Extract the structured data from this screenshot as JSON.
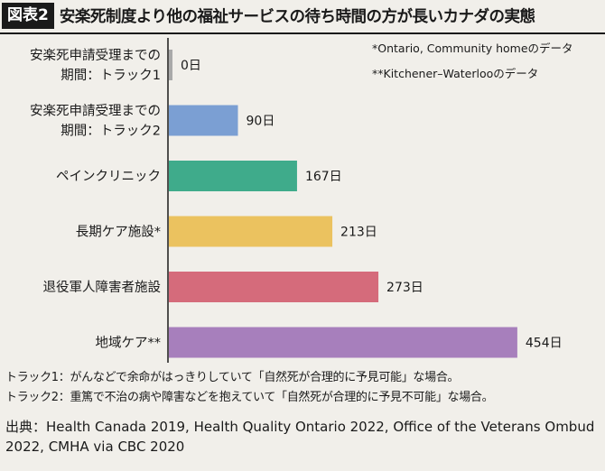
{
  "header": {
    "tag": "図表2",
    "title": "安楽死制度より他の福祉サービスの待ち時間の方が長いカナダの実態"
  },
  "notes": [
    "*Ontario, Community homeのデータ",
    "**Kitchener–Waterlooのデータ"
  ],
  "chart_data": {
    "type": "bar",
    "orientation": "horizontal",
    "categories": [
      [
        "安楽死申請受理までの",
        "期間：トラック1"
      ],
      [
        "安楽死申請受理までの",
        "期間：トラック2"
      ],
      [
        "ペインクリニック"
      ],
      [
        "長期ケア施設*"
      ],
      [
        "退役軍人障害者施設"
      ],
      [
        "地域ケア**"
      ]
    ],
    "values": [
      0,
      90,
      167,
      213,
      273,
      454
    ],
    "value_labels": [
      "0日",
      "90日",
      "167日",
      "213日",
      "273日",
      "454日"
    ],
    "colors": [
      "#a9a9a9",
      "#7b9fd3",
      "#3fab8b",
      "#ebc25f",
      "#d56b7b",
      "#a77fbc"
    ],
    "xlim": [
      0,
      500
    ],
    "grid": false,
    "title": "",
    "xlabel": "",
    "ylabel": ""
  },
  "footnotes": [
    "トラック1：がんなどで余命がはっきりしていて「自然死が合理的に予見可能」な場合。",
    "トラック2：重篤で不治の病や障害などを抱えていて「自然死が合理的に予見不可能」な場合。"
  ],
  "source": "出典：Health Canada 2019, Health Quality Ontario 2022, Office of the Veterans Ombud 2022, CMHA via CBC 2020"
}
